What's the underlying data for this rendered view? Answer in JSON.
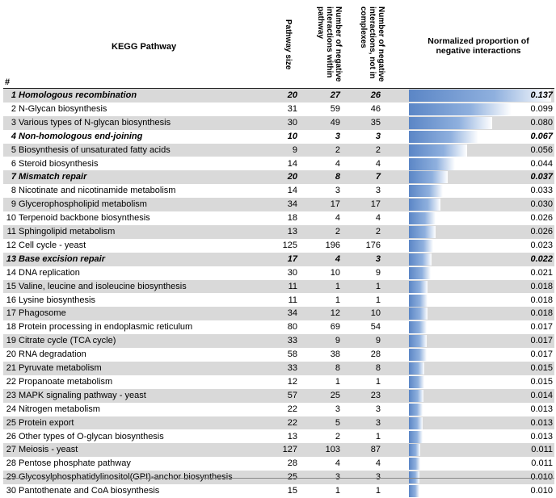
{
  "headers": {
    "idx": "#",
    "pathway": "KEGG Pathway",
    "size": "Pathway size",
    "neg_within": "Number of negative interactions within pathway",
    "neg_not_complex": "Number of negative interactions, not in complexes",
    "norm": "Normalized proportion of negative interactions"
  },
  "chart_data": {
    "type": "table",
    "columns": [
      "#",
      "KEGG Pathway",
      "Pathway size",
      "Number of negative interactions within pathway",
      "Number of negative interactions, not in complexes",
      "Normalized proportion of negative interactions"
    ],
    "bar_max": 0.137,
    "rows": [
      {
        "idx": "1",
        "name": "Homologous recombination",
        "size": "20",
        "neg": "27",
        "nc": "26",
        "val": "0.137",
        "v": 0.137,
        "hl": true,
        "shade": true
      },
      {
        "idx": "2",
        "name": "N-Glycan biosynthesis",
        "size": "31",
        "neg": "59",
        "nc": "46",
        "val": "0.099",
        "v": 0.099,
        "hl": false,
        "shade": false
      },
      {
        "idx": "3",
        "name": "Various types of N-glycan biosynthesis",
        "size": "30",
        "neg": "49",
        "nc": "35",
        "val": "0.080",
        "v": 0.08,
        "hl": false,
        "shade": true
      },
      {
        "idx": "4",
        "name": "Non-homologous end-joining",
        "size": "10",
        "neg": "3",
        "nc": "3",
        "val": "0.067",
        "v": 0.067,
        "hl": true,
        "shade": false
      },
      {
        "idx": "5",
        "name": "Biosynthesis of unsaturated fatty acids",
        "size": "9",
        "neg": "2",
        "nc": "2",
        "val": "0.056",
        "v": 0.056,
        "hl": false,
        "shade": true
      },
      {
        "idx": "6",
        "name": "Steroid biosynthesis",
        "size": "14",
        "neg": "4",
        "nc": "4",
        "val": "0.044",
        "v": 0.044,
        "hl": false,
        "shade": false
      },
      {
        "idx": "7",
        "name": "Mismatch repair",
        "size": "20",
        "neg": "8",
        "nc": "7",
        "val": "0.037",
        "v": 0.037,
        "hl": true,
        "shade": true
      },
      {
        "idx": "8",
        "name": "Nicotinate and nicotinamide metabolism",
        "size": "14",
        "neg": "3",
        "nc": "3",
        "val": "0.033",
        "v": 0.033,
        "hl": false,
        "shade": false
      },
      {
        "idx": "9",
        "name": "Glycerophospholipid metabolism",
        "size": "34",
        "neg": "17",
        "nc": "17",
        "val": "0.030",
        "v": 0.03,
        "hl": false,
        "shade": true
      },
      {
        "idx": "10",
        "name": "Terpenoid backbone biosynthesis",
        "size": "18",
        "neg": "4",
        "nc": "4",
        "val": "0.026",
        "v": 0.026,
        "hl": false,
        "shade": false
      },
      {
        "idx": "11",
        "name": "Sphingolipid metabolism",
        "size": "13",
        "neg": "2",
        "nc": "2",
        "val": "0.026",
        "v": 0.026,
        "hl": false,
        "shade": true
      },
      {
        "idx": "12",
        "name": "Cell cycle - yeast",
        "size": "125",
        "neg": "196",
        "nc": "176",
        "val": "0.023",
        "v": 0.023,
        "hl": false,
        "shade": false
      },
      {
        "idx": "13",
        "name": "Base excision repair",
        "size": "17",
        "neg": "4",
        "nc": "3",
        "val": "0.022",
        "v": 0.022,
        "hl": true,
        "shade": true
      },
      {
        "idx": "14",
        "name": "DNA replication",
        "size": "30",
        "neg": "10",
        "nc": "9",
        "val": "0.021",
        "v": 0.021,
        "hl": false,
        "shade": false
      },
      {
        "idx": "15",
        "name": "Valine, leucine and isoleucine biosynthesis",
        "size": "11",
        "neg": "1",
        "nc": "1",
        "val": "0.018",
        "v": 0.018,
        "hl": false,
        "shade": true
      },
      {
        "idx": "16",
        "name": "Lysine biosynthesis",
        "size": "11",
        "neg": "1",
        "nc": "1",
        "val": "0.018",
        "v": 0.018,
        "hl": false,
        "shade": false
      },
      {
        "idx": "17",
        "name": "Phagosome",
        "size": "34",
        "neg": "12",
        "nc": "10",
        "val": "0.018",
        "v": 0.018,
        "hl": false,
        "shade": true
      },
      {
        "idx": "18",
        "name": "Protein processing in endoplasmic reticulum",
        "size": "80",
        "neg": "69",
        "nc": "54",
        "val": "0.017",
        "v": 0.017,
        "hl": false,
        "shade": false
      },
      {
        "idx": "19",
        "name": "Citrate cycle (TCA cycle)",
        "size": "33",
        "neg": "9",
        "nc": "9",
        "val": "0.017",
        "v": 0.017,
        "hl": false,
        "shade": true
      },
      {
        "idx": "20",
        "name": "RNA degradation",
        "size": "58",
        "neg": "38",
        "nc": "28",
        "val": "0.017",
        "v": 0.017,
        "hl": false,
        "shade": false
      },
      {
        "idx": "21",
        "name": "Pyruvate metabolism",
        "size": "33",
        "neg": "8",
        "nc": "8",
        "val": "0.015",
        "v": 0.015,
        "hl": false,
        "shade": true
      },
      {
        "idx": "22",
        "name": "Propanoate metabolism",
        "size": "12",
        "neg": "1",
        "nc": "1",
        "val": "0.015",
        "v": 0.015,
        "hl": false,
        "shade": false
      },
      {
        "idx": "23",
        "name": "MAPK signaling pathway - yeast",
        "size": "57",
        "neg": "25",
        "nc": "23",
        "val": "0.014",
        "v": 0.014,
        "hl": false,
        "shade": true
      },
      {
        "idx": "24",
        "name": "Nitrogen metabolism",
        "size": "22",
        "neg": "3",
        "nc": "3",
        "val": "0.013",
        "v": 0.013,
        "hl": false,
        "shade": false
      },
      {
        "idx": "25",
        "name": "Protein export",
        "size": "22",
        "neg": "5",
        "nc": "3",
        "val": "0.013",
        "v": 0.013,
        "hl": false,
        "shade": true
      },
      {
        "idx": "26",
        "name": "Other types of O-glycan biosynthesis",
        "size": "13",
        "neg": "2",
        "nc": "1",
        "val": "0.013",
        "v": 0.013,
        "hl": false,
        "shade": false
      },
      {
        "idx": "27",
        "name": "Meiosis - yeast",
        "size": "127",
        "neg": "103",
        "nc": "87",
        "val": "0.011",
        "v": 0.011,
        "hl": false,
        "shade": true
      },
      {
        "idx": "28",
        "name": "Pentose phosphate pathway",
        "size": "28",
        "neg": "4",
        "nc": "4",
        "val": "0.011",
        "v": 0.011,
        "hl": false,
        "shade": false
      },
      {
        "idx": "29",
        "name": "Glycosylphosphatidylinositol(GPI)-anchor biosynthesis",
        "size": "25",
        "neg": "3",
        "nc": "3",
        "val": "0.010",
        "v": 0.01,
        "hl": false,
        "shade": true
      },
      {
        "idx": "30",
        "name": "Pantothenate and CoA biosynthesis",
        "size": "15",
        "neg": "1",
        "nc": "1",
        "val": "0.010",
        "v": 0.01,
        "hl": false,
        "shade": false
      }
    ]
  }
}
